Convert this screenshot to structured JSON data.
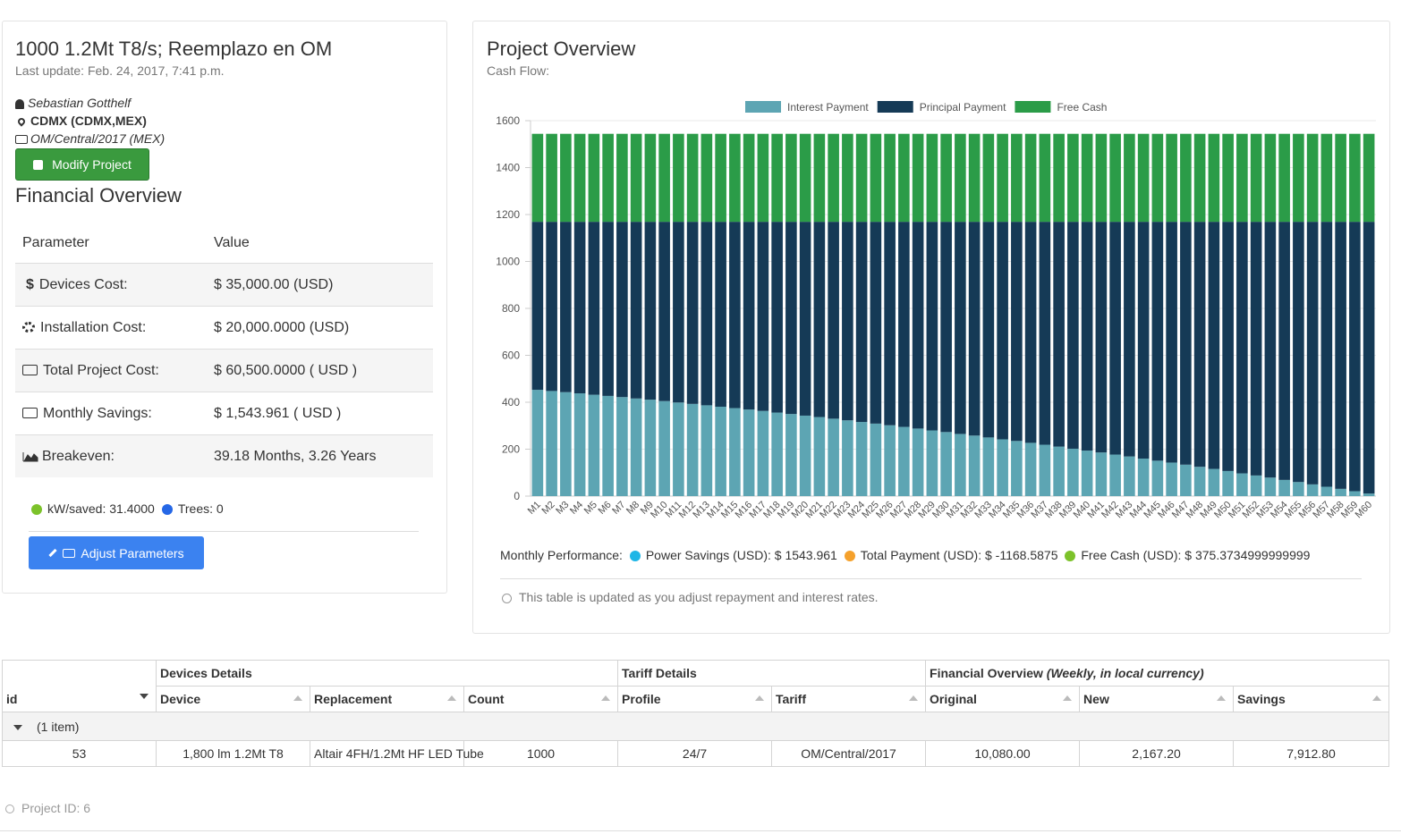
{
  "project": {
    "title": "1000 1.2Mt T8/s; Reemplazo en OM",
    "last_update": "Last update: Feb. 24, 2017, 7:41 p.m.",
    "user": "Sebastian Gotthelf",
    "location": "CDMX (CDMX,MEX)",
    "tariff": "OM/Central/2017 (MEX)",
    "modify_button": "Modify Project"
  },
  "financial": {
    "title": "Financial Overview",
    "header": [
      "Parameter",
      "Value"
    ],
    "rows": [
      [
        "Devices Cost:",
        "$ 35,000.00 (USD)"
      ],
      [
        "Installation Cost:",
        "$ 20,000.0000 (USD)"
      ],
      [
        "Total Project Cost:",
        "$ 60,500.0000 ( USD )"
      ],
      [
        "Monthly Savings:",
        "$ 1,543.961 ( USD )"
      ],
      [
        "Breakeven:",
        "39.18 Months, 3.26 Years"
      ]
    ]
  },
  "indicators": {
    "kw": "kW/saved: 31.4000",
    "trees": "Trees: 0"
  },
  "adjust_button": "Adjust Parameters",
  "overview": {
    "title": "Project Overview",
    "subtitle": "Cash Flow:"
  },
  "chart_data": {
    "type": "stacked_bar",
    "categories": [
      "M1",
      "M2",
      "M3",
      "M4",
      "M5",
      "M6",
      "M7",
      "M8",
      "M9",
      "M10",
      "M11",
      "M12",
      "M13",
      "M14",
      "M15",
      "M16",
      "M17",
      "M18",
      "M19",
      "M20",
      "M21",
      "M22",
      "M23",
      "M24",
      "M25",
      "M26",
      "M27",
      "M28",
      "M29",
      "M30",
      "M31",
      "M32",
      "M33",
      "M34",
      "M35",
      "M36",
      "M37",
      "M38",
      "M39",
      "M40",
      "M41",
      "M42",
      "M43",
      "M44",
      "M45",
      "M46",
      "M47",
      "M48",
      "M49",
      "M50",
      "M51",
      "M52",
      "M53",
      "M54",
      "M55",
      "M56",
      "M57",
      "M58",
      "M59",
      "M60"
    ],
    "series": [
      {
        "name": "Interest Payment",
        "color": "#5da5b3",
        "values": [
          453,
          448,
          443,
          438,
          432,
          427,
          422,
          416,
          411,
          405,
          399,
          393,
          387,
          381,
          375,
          369,
          363,
          356,
          350,
          343,
          337,
          330,
          323,
          316,
          309,
          302,
          295,
          288,
          280,
          273,
          265,
          258,
          250,
          242,
          235,
          227,
          219,
          211,
          202,
          194,
          186,
          177,
          169,
          160,
          151,
          143,
          134,
          125,
          116,
          107,
          97,
          88,
          79,
          69,
          60,
          50,
          40,
          31,
          21,
          11
        ]
      },
      {
        "name": "Principal Payment",
        "color": "#153a56",
        "values": [
          716,
          721,
          726,
          731,
          737,
          742,
          747,
          753,
          758,
          764,
          770,
          776,
          782,
          788,
          794,
          800,
          806,
          813,
          819,
          826,
          832,
          839,
          846,
          853,
          860,
          867,
          874,
          881,
          889,
          896,
          904,
          911,
          919,
          927,
          934,
          942,
          950,
          958,
          967,
          975,
          983,
          992,
          1000,
          1009,
          1018,
          1026,
          1035,
          1044,
          1053,
          1062,
          1072,
          1081,
          1090,
          1100,
          1109,
          1119,
          1129,
          1138,
          1148,
          1158
        ]
      },
      {
        "name": "Free Cash",
        "color": "#2b9c48",
        "values": [
          375,
          375,
          375,
          375,
          375,
          375,
          375,
          375,
          375,
          375,
          375,
          375,
          375,
          375,
          375,
          375,
          375,
          375,
          375,
          375,
          375,
          375,
          375,
          375,
          375,
          375,
          375,
          375,
          375,
          375,
          375,
          375,
          375,
          375,
          375,
          375,
          375,
          375,
          375,
          375,
          375,
          375,
          375,
          375,
          375,
          375,
          375,
          375,
          375,
          375,
          375,
          375,
          375,
          375,
          375,
          375,
          375,
          375,
          375,
          375
        ]
      }
    ],
    "ylim": [
      0,
      1600
    ],
    "yticks": [
      0,
      200,
      400,
      600,
      800,
      1000,
      1200,
      1400,
      1600
    ],
    "grid": true,
    "legend": "top"
  },
  "performance": {
    "label": "Monthly Performance:",
    "items": [
      "Power Savings (USD): $ 1543.961",
      "Total Payment (USD): $ -1168.5875",
      "Free Cash (USD): $ 375.3734999999999"
    ]
  },
  "note": "This table is updated as you adjust repayment and interest rates.",
  "grid": {
    "groups": [
      "Devices Details",
      "Tariff Details",
      "Financial Overview"
    ],
    "group_note": "(Weekly, in local currency)",
    "columns": [
      "id",
      "Device",
      "Replacement",
      "Count",
      "Profile",
      "Tariff",
      "Original",
      "New",
      "Savings"
    ],
    "group_row": "(1 item)",
    "rows": [
      [
        "53",
        "1,800 lm 1.2Mt T8",
        "Altair 4FH/1.2Mt HF LED Tube",
        "1000",
        "24/7",
        "OM/Central/2017",
        "10,080.00",
        "2,167.20",
        "7,912.80"
      ]
    ]
  },
  "footer": "Project ID: 6"
}
